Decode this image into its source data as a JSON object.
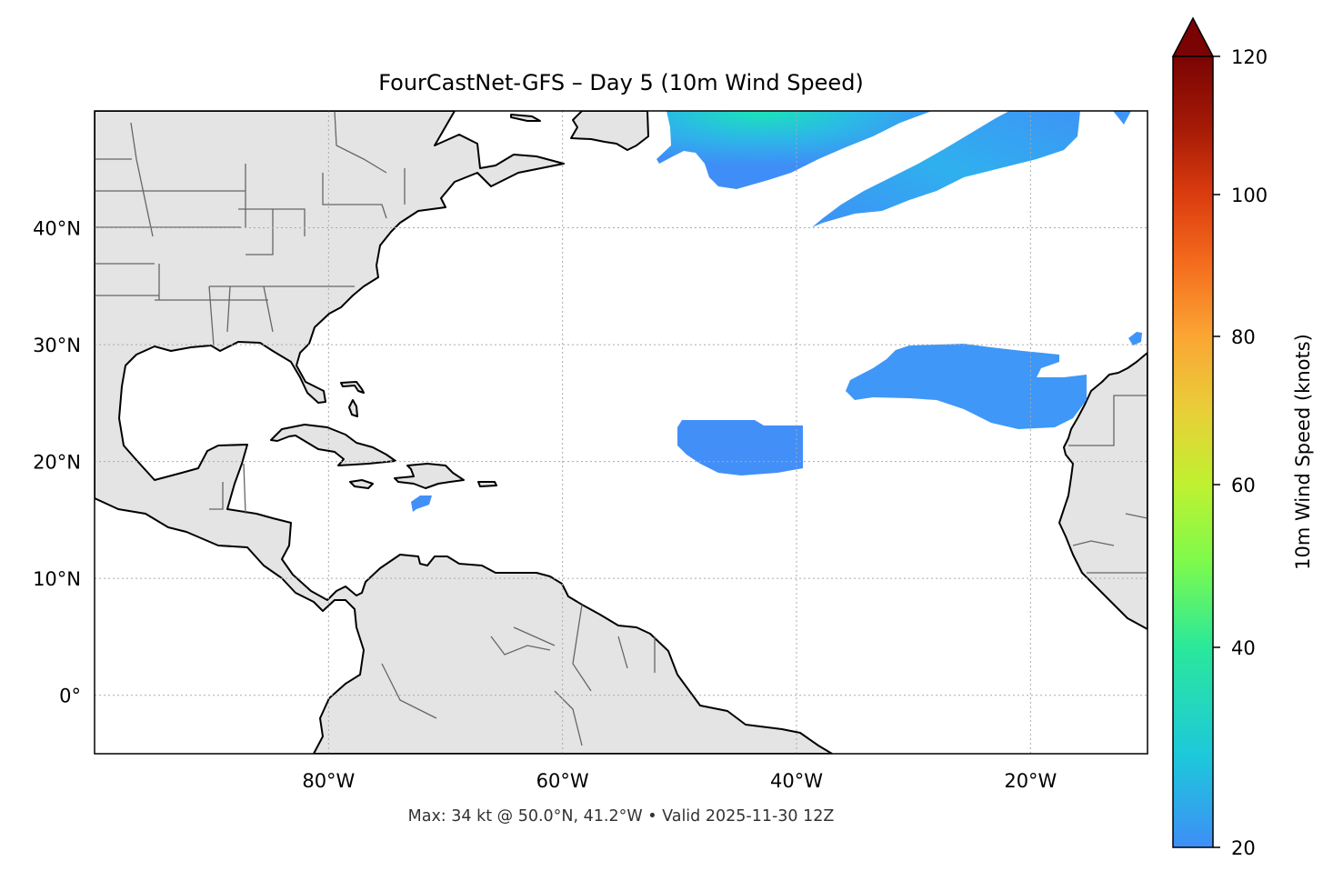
{
  "title": "FourCastNet-GFS – Day 5 (10m Wind Speed)",
  "footer": "Max: 34 kt @ 50.0°N, 41.2°W • Valid 2025-11-30 12Z",
  "map": {
    "extent": {
      "lon_min": -100,
      "lon_max": -10,
      "lat_min": -5,
      "lat_max": 50
    },
    "land_color": "#e4e4e4",
    "lon_ticks": [
      {
        "value": -80,
        "label": "80°W"
      },
      {
        "value": -60,
        "label": "60°W"
      },
      {
        "value": -40,
        "label": "40°W"
      },
      {
        "value": -20,
        "label": "20°W"
      }
    ],
    "lat_ticks": [
      {
        "value": 40,
        "label": "40°N"
      },
      {
        "value": 30,
        "label": "30°N"
      },
      {
        "value": 20,
        "label": "20°N"
      },
      {
        "value": 10,
        "label": "10°N"
      },
      {
        "value": 0,
        "label": "0°"
      }
    ],
    "gridlines": "dotted"
  },
  "colorbar": {
    "label": "10m Wind Speed (knots)",
    "ticks": [
      "20",
      "40",
      "60",
      "80",
      "100",
      "120"
    ],
    "extend": "max",
    "colormap": "turbo",
    "min": 20,
    "max": 120
  }
}
